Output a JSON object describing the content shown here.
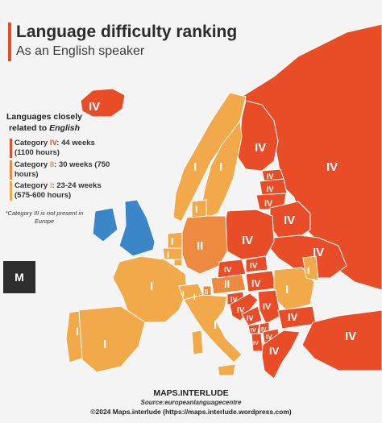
{
  "title": "Language difficulty ranking",
  "subtitle": "As an English speaker",
  "legend": {
    "heading_prefix": "Languages closely",
    "heading_related": "related to",
    "heading_lang": "English",
    "items": [
      {
        "label": "Category ",
        "num": "IV",
        "text": ": 44 weeks (1100 hours)",
        "color": "#e84d28"
      },
      {
        "label": "Category ",
        "num": "II",
        "text": ": 30 weeks (750 hours)",
        "color": "#ec8a40"
      },
      {
        "label": "Category ",
        "num": "I",
        "text": ": 23-24 weeks (575-600 hours)",
        "color": "#f2a94a"
      }
    ],
    "note": "*Category III is not present in Europe"
  },
  "colors": {
    "cat1": "#f2a94a",
    "cat2": "#ec8a40",
    "cat4": "#e84d28",
    "english": "#3a86c6",
    "sea": "#f4f4f4",
    "border": "#ffffff"
  },
  "regions": {
    "iceland": "IV",
    "norway": "I",
    "sweden": "I",
    "finland": "IV",
    "estonia": "IV",
    "latvia": "IV",
    "lithuania": "IV",
    "russia": "IV",
    "belarus": "IV",
    "poland": "IV",
    "ukraine": "IV",
    "germany": "II",
    "denmark": "I",
    "netherlands": "I",
    "belgium": "I",
    "france": "I",
    "spain": "I",
    "portugal": "I",
    "italy": "I",
    "switzerland_1": "I",
    "switzerland_2": "I",
    "austria": "II",
    "czech": "IV",
    "slovakia": "IV",
    "hungary": "IV",
    "romania": "I",
    "moldova": "I",
    "slovenia": "IV",
    "croatia": "IV",
    "bosnia": "IV",
    "serbia": "IV",
    "bulgaria": "IV",
    "greece": "IV",
    "turkey": "IV",
    "albania": "IV",
    "montenegro": "IV",
    "kosovo": "IV",
    "macedonia": "IV",
    "liechtenstein": "II",
    "luxembourg": "I"
  },
  "logo": "M",
  "credits": {
    "brand": "MAPS.INTERLUDE",
    "source": "Source:europeanlanguagecentre",
    "copyright": "©2024 Maps.interlude (https://maps.interlude.wordpress.com)"
  }
}
